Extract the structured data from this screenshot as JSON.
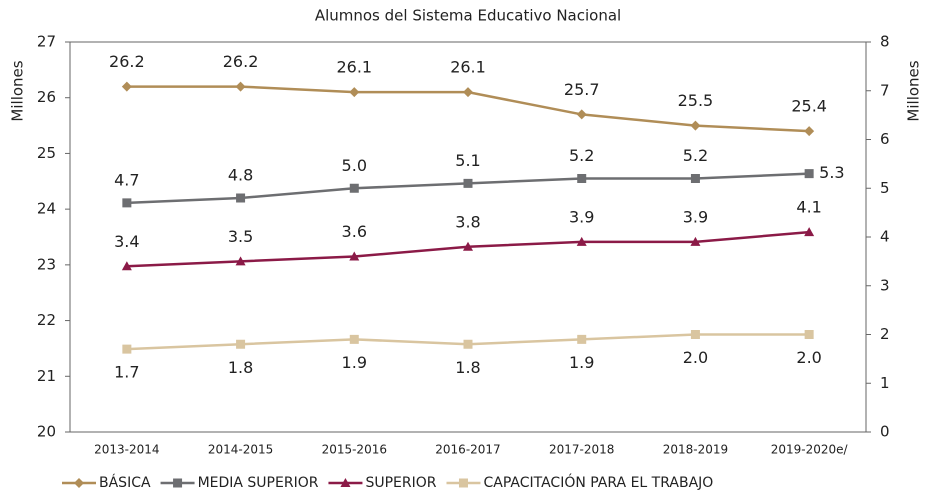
{
  "chart_data": {
    "type": "line",
    "title": "Alumnos del Sistema Educativo Nacional",
    "y_label": "Millones",
    "y2_label": "Millones",
    "categories": [
      "2013-2014",
      "2014-2015",
      "2015-2016",
      "2016-2017",
      "2017-2018",
      "2018-2019",
      "2019-2020e/"
    ],
    "ylim": [
      20,
      27
    ],
    "yticks": [
      20,
      21,
      22,
      23,
      24,
      25,
      26,
      27
    ],
    "y2lim": [
      0,
      8
    ],
    "y2ticks": [
      0,
      1,
      2,
      3,
      4,
      5,
      6,
      7,
      8
    ],
    "legend": "bottom",
    "series": [
      {
        "name": "BÁSICA",
        "color": "#b08d57",
        "marker": "diamond",
        "values": [
          26.2,
          26.2,
          26.1,
          26.1,
          25.7,
          25.5,
          25.4
        ],
        "value_labels": [
          "26.2",
          "26.2",
          "26.1",
          "26.1",
          "25.7",
          "25.5",
          "25.4"
        ]
      },
      {
        "name": "MEDIA SUPERIOR",
        "color": "#6d6e71",
        "marker": "square",
        "axis": "y2",
        "values": [
          4.7,
          4.8,
          5.0,
          5.1,
          5.2,
          5.2,
          5.3
        ],
        "value_labels": [
          "4.7",
          "4.8",
          "5.0",
          "5.1",
          "5.2",
          "5.2",
          "5.3"
        ]
      },
      {
        "name": "SUPERIOR",
        "color": "#8b1a47",
        "marker": "triangle",
        "axis": "y2",
        "values": [
          3.4,
          3.5,
          3.6,
          3.8,
          3.9,
          3.9,
          4.1
        ],
        "value_labels": [
          "3.4",
          "3.5",
          "3.6",
          "3.8",
          "3.9",
          "3.9",
          "4.1"
        ]
      },
      {
        "name": "CAPACITACIÓN PARA EL TRABAJO",
        "color": "#d9c5a0",
        "marker": "square",
        "axis": "y2",
        "values": [
          1.7,
          1.8,
          1.9,
          1.8,
          1.9,
          2.0,
          2.0
        ],
        "value_labels": [
          "1.7",
          "1.8",
          "1.9",
          "1.8",
          "1.9",
          "2.0",
          "2.0"
        ]
      }
    ]
  }
}
